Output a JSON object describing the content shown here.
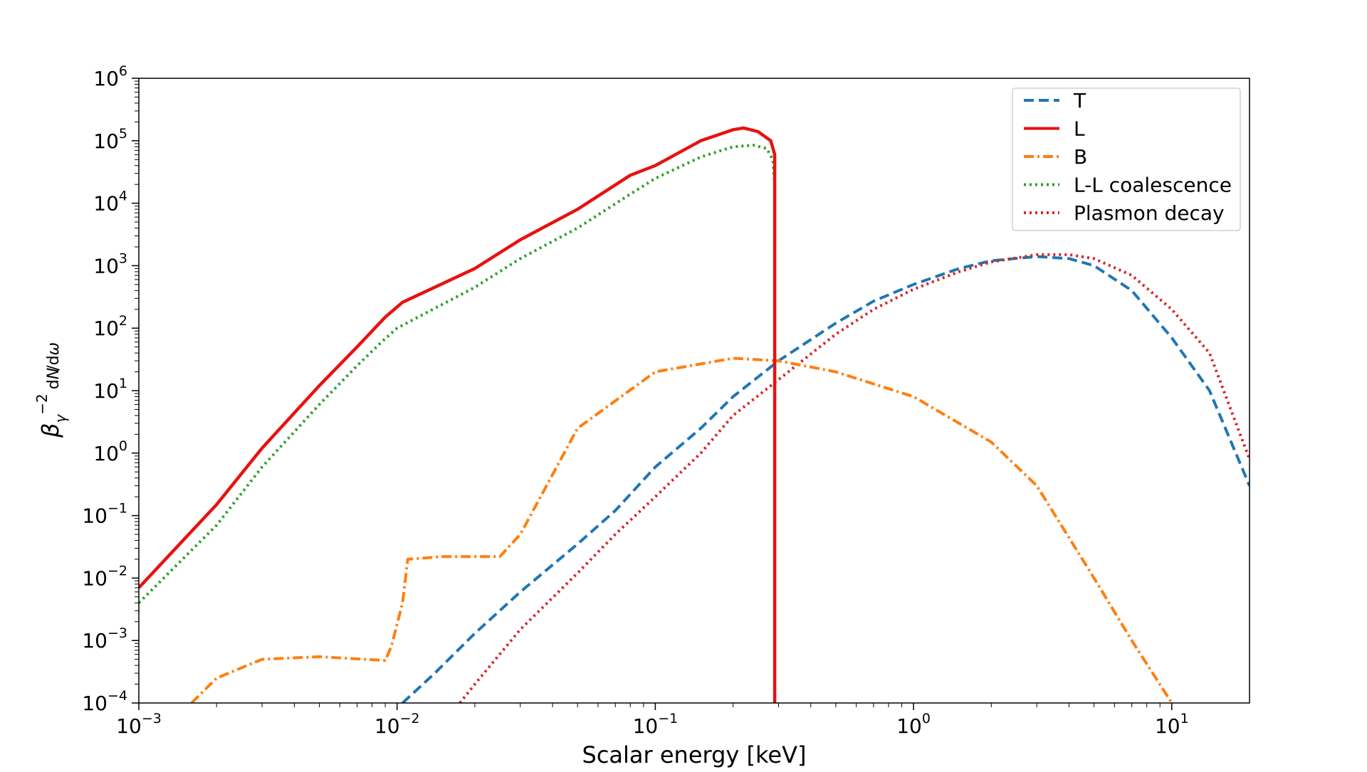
{
  "chart_data": {
    "type": "line",
    "xlabel": "Scalar energy [keV]",
    "ylabel": "β_γ^{-2} dN/dω",
    "x_scale": "log",
    "y_scale": "log",
    "xlim": [
      0.001,
      20
    ],
    "ylim": [
      0.0001,
      1000000
    ],
    "grid": false,
    "legend_placement": "top-right",
    "x_ticks": [
      {
        "value": 0.001,
        "base": "10",
        "exp": "−3"
      },
      {
        "value": 0.01,
        "base": "10",
        "exp": "−2"
      },
      {
        "value": 0.1,
        "base": "10",
        "exp": "−1"
      },
      {
        "value": 1,
        "base": "10",
        "exp": "0"
      },
      {
        "value": 10,
        "base": "10",
        "exp": "1"
      }
    ],
    "y_ticks": [
      {
        "value": 0.0001,
        "base": "10",
        "exp": "−4"
      },
      {
        "value": 0.001,
        "base": "10",
        "exp": "−3"
      },
      {
        "value": 0.01,
        "base": "10",
        "exp": "−2"
      },
      {
        "value": 0.1,
        "base": "10",
        "exp": "−1"
      },
      {
        "value": 1,
        "base": "10",
        "exp": "0"
      },
      {
        "value": 10,
        "base": "10",
        "exp": "1"
      },
      {
        "value": 100,
        "base": "10",
        "exp": "2"
      },
      {
        "value": 1000,
        "base": "10",
        "exp": "3"
      },
      {
        "value": 10000,
        "base": "10",
        "exp": "4"
      },
      {
        "value": 100000,
        "base": "10",
        "exp": "5"
      },
      {
        "value": 1000000,
        "base": "10",
        "exp": "6"
      }
    ],
    "series": [
      {
        "name": "T",
        "color": "#1f77b4",
        "style": "dashed",
        "x": [
          0.0105,
          0.014,
          0.02,
          0.03,
          0.05,
          0.07,
          0.1,
          0.15,
          0.2,
          0.3,
          0.5,
          0.7,
          1.0,
          1.5,
          2.0,
          3.0,
          4.0,
          5.0,
          7.0,
          10.0,
          14.0,
          20.0
        ],
        "y": [
          0.0001,
          0.0003,
          0.0013,
          0.006,
          0.035,
          0.12,
          0.6,
          2.5,
          8,
          30,
          120,
          270,
          500,
          900,
          1200,
          1400,
          1300,
          1000,
          400,
          70,
          10,
          0.3
        ]
      },
      {
        "name": "L",
        "color": "#e8110f",
        "style": "solid",
        "x": [
          0.001,
          0.002,
          0.003,
          0.005,
          0.007,
          0.009,
          0.0105,
          0.02,
          0.03,
          0.05,
          0.08,
          0.1,
          0.15,
          0.2,
          0.22,
          0.25,
          0.28,
          0.29,
          0.29
        ],
        "y": [
          0.007,
          0.15,
          1.2,
          12,
          50,
          150,
          260,
          900,
          2600,
          8000,
          28000,
          40000,
          100000,
          150000,
          160000,
          140000,
          100000,
          60000,
          0.0001
        ]
      },
      {
        "name": "B",
        "color": "#ff7f0e",
        "style": "dashdot",
        "x": [
          0.0016,
          0.002,
          0.003,
          0.005,
          0.009,
          0.0095,
          0.0105,
          0.011,
          0.015,
          0.025,
          0.03,
          0.05,
          0.1,
          0.2,
          0.3,
          0.5,
          1.0,
          2.0,
          3.0,
          5.0,
          7.0,
          10.0
        ],
        "y": [
          0.0001,
          0.00025,
          0.0005,
          0.00055,
          0.00048,
          0.0008,
          0.004,
          0.02,
          0.022,
          0.022,
          0.05,
          2.5,
          20,
          33,
          30,
          20,
          8,
          1.5,
          0.3,
          0.01,
          0.001,
          0.0001
        ]
      },
      {
        "name": "L-L coalescence",
        "color": "#2ca02c",
        "style": "dotted",
        "x": [
          0.001,
          0.002,
          0.003,
          0.005,
          0.007,
          0.0087,
          0.01,
          0.02,
          0.03,
          0.05,
          0.08,
          0.1,
          0.15,
          0.2,
          0.24,
          0.27,
          0.285,
          0.29,
          0.29
        ],
        "y": [
          0.004,
          0.07,
          0.6,
          6,
          25,
          60,
          100,
          450,
          1300,
          4000,
          14000,
          25000,
          55000,
          80000,
          85000,
          75000,
          50000,
          20000,
          2000
        ]
      },
      {
        "name": "Plasmon decay",
        "color": "#d62728",
        "style": "dotted",
        "x": [
          0.0175,
          0.02,
          0.03,
          0.05,
          0.07,
          0.1,
          0.15,
          0.2,
          0.3,
          0.5,
          0.7,
          1.0,
          1.5,
          2.0,
          3.0,
          4.0,
          5.0,
          7.0,
          10.0,
          14.0,
          20.0
        ],
        "y": [
          0.0001,
          0.0002,
          0.0015,
          0.012,
          0.05,
          0.2,
          1,
          4,
          15,
          80,
          200,
          420,
          800,
          1150,
          1500,
          1500,
          1300,
          700,
          200,
          40,
          0.8
        ]
      }
    ]
  }
}
